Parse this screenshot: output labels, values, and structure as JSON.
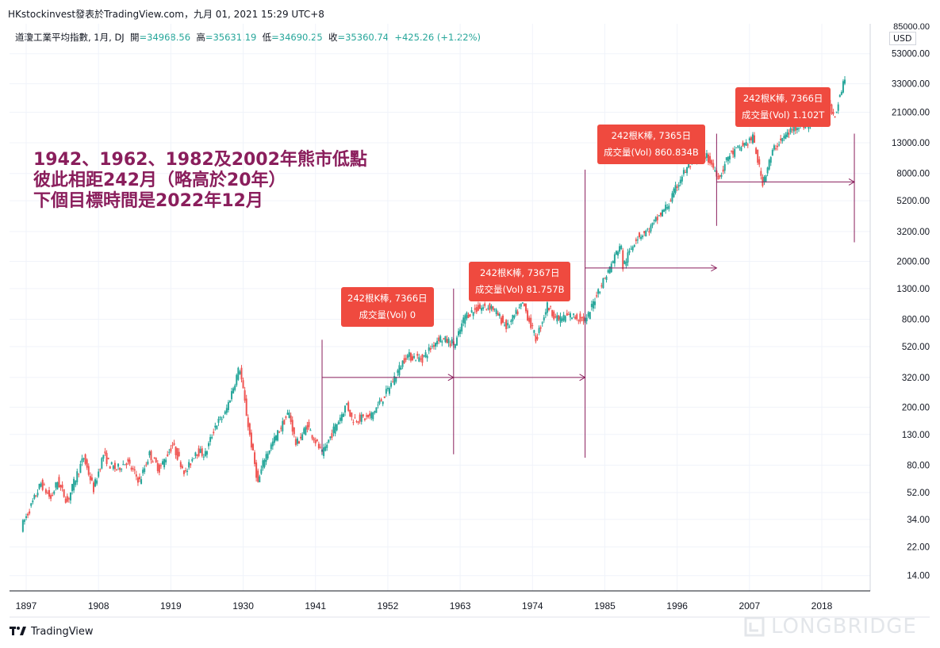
{
  "header": {
    "title": "HKstockinvest發表於TradingView.com，九月 01, 2021 15:29 UTC+8"
  },
  "symbol": {
    "name": "道瓊工業平均指數, 1月, DJ",
    "open_label": "開",
    "open": "=34968.56",
    "high_label": "高",
    "high": "=35631.19",
    "low_label": "低",
    "low": "=34690.25",
    "close_label": "收",
    "close": "=35360.74",
    "change": "+425.26 (+1.22%)"
  },
  "price_axis": {
    "currency": "USD",
    "top_label": "85000.00"
  },
  "annotation": {
    "line1": "1942、1962、1982及2002年熊市低點",
    "line2": "彼此相距242月（略高於20年）",
    "line3": "下個目標時間是2022年12月"
  },
  "callouts": [
    {
      "line1": "242根K棒, 7366日",
      "line2": "成交量(Vol) 0"
    },
    {
      "line1": "242根K棒, 7367日",
      "line2": "成交量(Vol) 81.757B"
    },
    {
      "line1": "242根K棒, 7365日",
      "line2": "成交量(Vol) 860.834B"
    },
    {
      "line1": "242根K棒, 7366日",
      "line2": "成交量(Vol) 1.102T"
    }
  ],
  "footer": {
    "brand": "TradingView",
    "watermark": "LONGBRIDGE"
  },
  "colors": {
    "up": "#26a69a",
    "down": "#ef5350",
    "annotation": "#8a1e5c",
    "callout": "#ef4a3f",
    "grid": "#f0f3fa"
  },
  "chart_data": {
    "type": "line",
    "yscale": "log",
    "ylim": [
      11,
      85000
    ],
    "xlim": [
      1896,
      2026
    ],
    "x_ticks": [
      1897,
      1908,
      1919,
      1930,
      1941,
      1952,
      1963,
      1974,
      1985,
      1996,
      2007,
      2018
    ],
    "y_ticks": [
      14,
      22,
      34,
      52,
      80,
      130,
      200,
      320,
      520,
      800,
      1300,
      2000,
      3200,
      5200,
      8000,
      13000,
      21000,
      33000,
      53000
    ],
    "y_tick_labels": [
      "14.00",
      "22.00",
      "34.00",
      "52.00",
      "80.00",
      "130.00",
      "200.00",
      "320.00",
      "520.00",
      "800.00",
      "1300.00",
      "2000.00",
      "3200.00",
      "5200.00",
      "8000.00",
      "13000.00",
      "21000.00",
      "33000.00",
      "53000.00"
    ],
    "series": [
      {
        "x": [
          1896.5,
          1898,
          1899.5,
          1901,
          1902,
          1903.5,
          1905,
          1906,
          1907.5,
          1909,
          1910,
          1911,
          1912.5,
          1914.5,
          1916,
          1917.5,
          1919.5,
          1921.5,
          1923,
          1924.5,
          1926,
          1927.5,
          1929.7,
          1931,
          1932.5,
          1933.5,
          1935,
          1937.2,
          1938.3,
          1940,
          1942.3,
          1944,
          1946,
          1946.8,
          1949.5,
          1952,
          1955,
          1957.5,
          1960,
          1962.5,
          1964,
          1966,
          1968,
          1970.4,
          1972.8,
          1974.8,
          1976.5,
          1978,
          1980,
          1982.5,
          1984,
          1986,
          1987.7,
          1987.9,
          1990,
          1992,
          1995,
          1997,
          1999.9,
          2001,
          2002.7,
          2004,
          2007.8,
          2009.2,
          2011,
          2013,
          2015,
          2016,
          2018,
          2019,
          2020.2,
          2021.6
        ],
        "values": [
          30,
          42,
          60,
          47,
          62,
          45,
          70,
          90,
          55,
          95,
          80,
          75,
          85,
          62,
          95,
          75,
          110,
          70,
          100,
          95,
          150,
          180,
          380,
          150,
          60,
          90,
          120,
          185,
          110,
          150,
          95,
          140,
          210,
          165,
          170,
          250,
          450,
          430,
          600,
          540,
          850,
          950,
          980,
          700,
          1030,
          580,
          1000,
          800,
          850,
          790,
          1200,
          1800,
          2700,
          1800,
          2900,
          3300,
          5000,
          7800,
          11500,
          10000,
          7500,
          10500,
          14000,
          6900,
          12000,
          15000,
          17800,
          16500,
          26000,
          25000,
          20000,
          35400
        ]
      }
    ],
    "bear_market_lows": [
      1942,
      1962,
      1982,
      2002
    ],
    "next_target": "2022年12月",
    "bars_between_lows": 242
  }
}
